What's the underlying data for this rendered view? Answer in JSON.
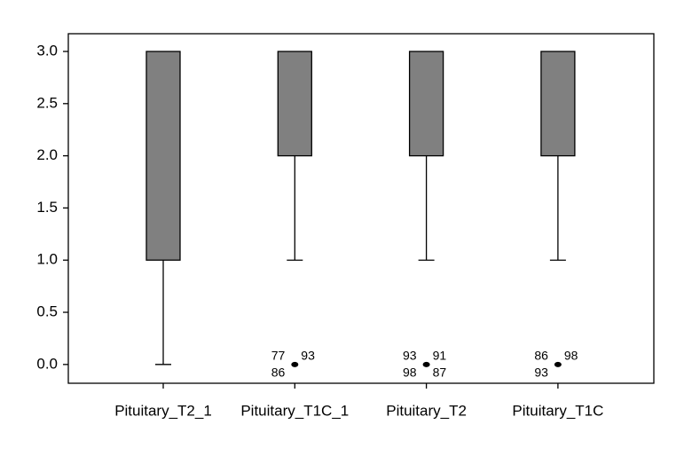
{
  "chart_data": {
    "type": "box",
    "categories": [
      "Pituitary_T2_1",
      "Pituitary_T1C_1",
      "Pituitary_T2",
      "Pituitary_T1C"
    ],
    "boxes": [
      {
        "min": 0,
        "q1": 1,
        "q3": 3,
        "max": 3
      },
      {
        "min": 1,
        "q1": 2,
        "q3": 3,
        "max": 3
      },
      {
        "min": 1,
        "q1": 2,
        "q3": 3,
        "max": 3
      },
      {
        "min": 1,
        "q1": 2,
        "q3": 3,
        "max": 3
      }
    ],
    "outliers": [
      [],
      [
        {
          "value": 0,
          "labels": [
            77,
            86,
            93
          ]
        }
      ],
      [
        {
          "value": 0,
          "labels": [
            93,
            98,
            91,
            87
          ]
        }
      ],
      [
        {
          "value": 0,
          "labels": [
            86,
            93,
            98
          ]
        }
      ]
    ],
    "color": "#808080",
    "ylim": [
      -0.18,
      3.17
    ],
    "yticks": [
      {
        "value": 0,
        "label": "0.0"
      },
      {
        "value": 0.5,
        "label": "0.5"
      },
      {
        "value": 1,
        "label": "1.0"
      },
      {
        "value": 1.5,
        "label": "1.5"
      },
      {
        "value": 2,
        "label": "2.0"
      },
      {
        "value": 2.5,
        "label": "2.5"
      },
      {
        "value": 3,
        "label": "3.0"
      }
    ]
  }
}
